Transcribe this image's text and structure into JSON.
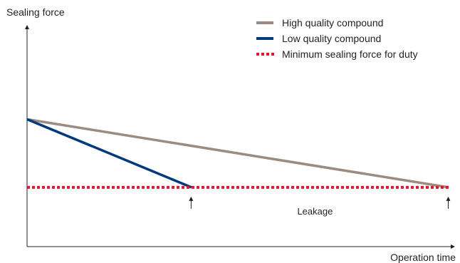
{
  "chart_data": {
    "type": "line",
    "ylabel": "Sealing force",
    "xlabel": "Operation time",
    "xlim": [
      0,
      100
    ],
    "ylim": [
      0,
      100
    ],
    "grid": false,
    "legend_position": "top-right",
    "series": [
      {
        "name": "High quality compound",
        "color": "#9b8b80",
        "style": "solid",
        "x": [
          0,
          100
        ],
        "y": [
          58,
          27
        ]
      },
      {
        "name": "Low quality compound",
        "color": "#003a7d",
        "style": "solid",
        "x": [
          0,
          39
        ],
        "y": [
          58,
          27
        ]
      },
      {
        "name": "Minimum sealing force for duty",
        "color": "#e4142d",
        "style": "dotted",
        "x": [
          0,
          100
        ],
        "y": [
          27,
          27
        ]
      }
    ],
    "markers": [
      {
        "x": 39,
        "icon": "up-arrow-icon"
      },
      {
        "x": 100,
        "icon": "up-arrow-icon"
      }
    ],
    "annotation": {
      "text": "Leakage",
      "x": 70
    }
  }
}
